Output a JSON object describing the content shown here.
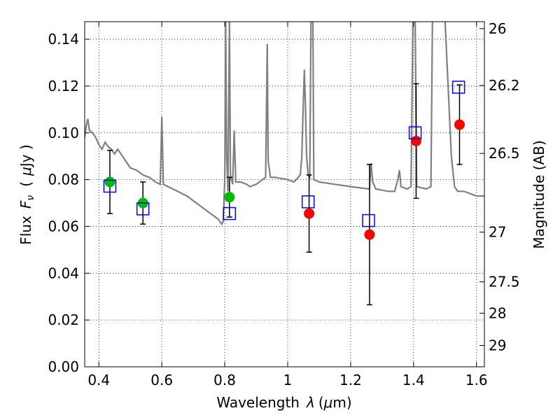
{
  "chart_data": {
    "type": "scatter",
    "xlabel_text": "Wavelength",
    "xlabel_symbol": "λ",
    "xlabel_unit_open": "(",
    "xlabel_unit_mu": "μ",
    "xlabel_unit_rest": "m)",
    "ylabel_text": "Flux",
    "ylabel_symbol": "F",
    "ylabel_sub": "ν",
    "ylabel_unit_open": "(",
    "ylabel_unit_mu": "μ",
    "ylabel_unit_rest": "Jy )",
    "y2label": "Magnitude (AB)",
    "xlim": [
      0.355,
      1.625
    ],
    "ylim": [
      0.0,
      0.1475
    ],
    "grid": true,
    "x_ticks": [
      0.4,
      0.6,
      0.8,
      1.0,
      1.2,
      1.4,
      1.6
    ],
    "x_tick_labels": [
      "0.4",
      "0.6",
      "0.8",
      "1",
      "1.2",
      "1.4",
      "1.6"
    ],
    "y_ticks": [
      0.0,
      0.02,
      0.04,
      0.06,
      0.08,
      0.1,
      0.12,
      0.14
    ],
    "y_tick_labels": [
      "0.00",
      "0.02",
      "0.04",
      "0.06",
      "0.08",
      "0.10",
      "0.12",
      "0.14"
    ],
    "mag_ticks": [
      26,
      26.2,
      26.5,
      27,
      27.5,
      28,
      29
    ],
    "mag_tick_labels": [
      "26",
      "26.2",
      "26.5",
      "27",
      "27.5",
      "28",
      "29"
    ],
    "mag_zero_point": 23.9,
    "template_color": "#808080",
    "colors": {
      "model": "#0000ff",
      "green": "#00bb00",
      "red": "#ff0000",
      "error": "#000000"
    },
    "template": [
      [
        0.355,
        0.098
      ],
      [
        0.36,
        0.103
      ],
      [
        0.365,
        0.106
      ],
      [
        0.37,
        0.101
      ],
      [
        0.38,
        0.1
      ],
      [
        0.39,
        0.098
      ],
      [
        0.4,
        0.095
      ],
      [
        0.41,
        0.093
      ],
      [
        0.42,
        0.096
      ],
      [
        0.43,
        0.094
      ],
      [
        0.44,
        0.093
      ],
      [
        0.45,
        0.091
      ],
      [
        0.46,
        0.093
      ],
      [
        0.47,
        0.091
      ],
      [
        0.48,
        0.089
      ],
      [
        0.49,
        0.087
      ],
      [
        0.5,
        0.085
      ],
      [
        0.52,
        0.084
      ],
      [
        0.54,
        0.082
      ],
      [
        0.56,
        0.081
      ],
      [
        0.58,
        0.079
      ],
      [
        0.595,
        0.078
      ],
      [
        0.6,
        0.107
      ],
      [
        0.605,
        0.078
      ],
      [
        0.62,
        0.077
      ],
      [
        0.65,
        0.075
      ],
      [
        0.68,
        0.073
      ],
      [
        0.7,
        0.071
      ],
      [
        0.72,
        0.069
      ],
      [
        0.74,
        0.067
      ],
      [
        0.76,
        0.065
      ],
      [
        0.78,
        0.063
      ],
      [
        0.79,
        0.061
      ],
      [
        0.795,
        0.062
      ],
      [
        0.8,
        0.08
      ],
      [
        0.803,
        0.148
      ],
      [
        0.806,
        0.09
      ],
      [
        0.81,
        0.075
      ],
      [
        0.815,
        0.148
      ],
      [
        0.818,
        0.082
      ],
      [
        0.825,
        0.078
      ],
      [
        0.83,
        0.101
      ],
      [
        0.835,
        0.079
      ],
      [
        0.85,
        0.079
      ],
      [
        0.87,
        0.078
      ],
      [
        0.88,
        0.077
      ],
      [
        0.9,
        0.078
      ],
      [
        0.92,
        0.08
      ],
      [
        0.93,
        0.081
      ],
      [
        0.935,
        0.138
      ],
      [
        0.938,
        0.088
      ],
      [
        0.945,
        0.081
      ],
      [
        0.96,
        0.081
      ],
      [
        1.0,
        0.08
      ],
      [
        1.02,
        0.079
      ],
      [
        1.04,
        0.082
      ],
      [
        1.045,
        0.09
      ],
      [
        1.05,
        0.115
      ],
      [
        1.053,
        0.127
      ],
      [
        1.056,
        0.113
      ],
      [
        1.06,
        0.09
      ],
      [
        1.065,
        0.082
      ],
      [
        1.07,
        0.081
      ],
      [
        1.074,
        0.148
      ],
      [
        1.08,
        0.148
      ],
      [
        1.083,
        0.08
      ],
      [
        1.1,
        0.079
      ],
      [
        1.15,
        0.078
      ],
      [
        1.2,
        0.077
      ],
      [
        1.26,
        0.076
      ],
      [
        1.265,
        0.087
      ],
      [
        1.27,
        0.079
      ],
      [
        1.28,
        0.076
      ],
      [
        1.32,
        0.075
      ],
      [
        1.34,
        0.075
      ],
      [
        1.35,
        0.08
      ],
      [
        1.355,
        0.084
      ],
      [
        1.36,
        0.077
      ],
      [
        1.38,
        0.076
      ],
      [
        1.392,
        0.077
      ],
      [
        1.398,
        0.148
      ],
      [
        1.405,
        0.148
      ],
      [
        1.41,
        0.077
      ],
      [
        1.44,
        0.076
      ],
      [
        1.455,
        0.077
      ],
      [
        1.46,
        0.148
      ],
      [
        1.5,
        0.148
      ],
      [
        1.52,
        0.09
      ],
      [
        1.53,
        0.077
      ],
      [
        1.54,
        0.075
      ],
      [
        1.56,
        0.075
      ],
      [
        1.58,
        0.074
      ],
      [
        1.6,
        0.073
      ],
      [
        1.625,
        0.073
      ]
    ],
    "model_points": [
      {
        "x": 0.435,
        "y": 0.0772
      },
      {
        "x": 0.54,
        "y": 0.0675
      },
      {
        "x": 0.815,
        "y": 0.0655
      },
      {
        "x": 1.065,
        "y": 0.0705
      },
      {
        "x": 1.257,
        "y": 0.0625
      },
      {
        "x": 1.405,
        "y": 0.1
      },
      {
        "x": 1.543,
        "y": 0.1195
      }
    ],
    "observed_points": [
      {
        "x": 0.435,
        "y": 0.079,
        "yerr": 0.0135,
        "color": "green"
      },
      {
        "x": 0.54,
        "y": 0.07,
        "yerr": 0.009,
        "color": "green"
      },
      {
        "x": 0.815,
        "y": 0.0725,
        "yerr": 0.0085,
        "color": "green"
      },
      {
        "x": 1.068,
        "y": 0.0655,
        "yerr": 0.0165,
        "color": "red"
      },
      {
        "x": 1.26,
        "y": 0.0565,
        "yerr": 0.03,
        "color": "red"
      },
      {
        "x": 1.408,
        "y": 0.0965,
        "yerr": 0.0245,
        "color": "red"
      },
      {
        "x": 1.546,
        "y": 0.1035,
        "yerr": 0.017,
        "color": "red"
      }
    ]
  }
}
